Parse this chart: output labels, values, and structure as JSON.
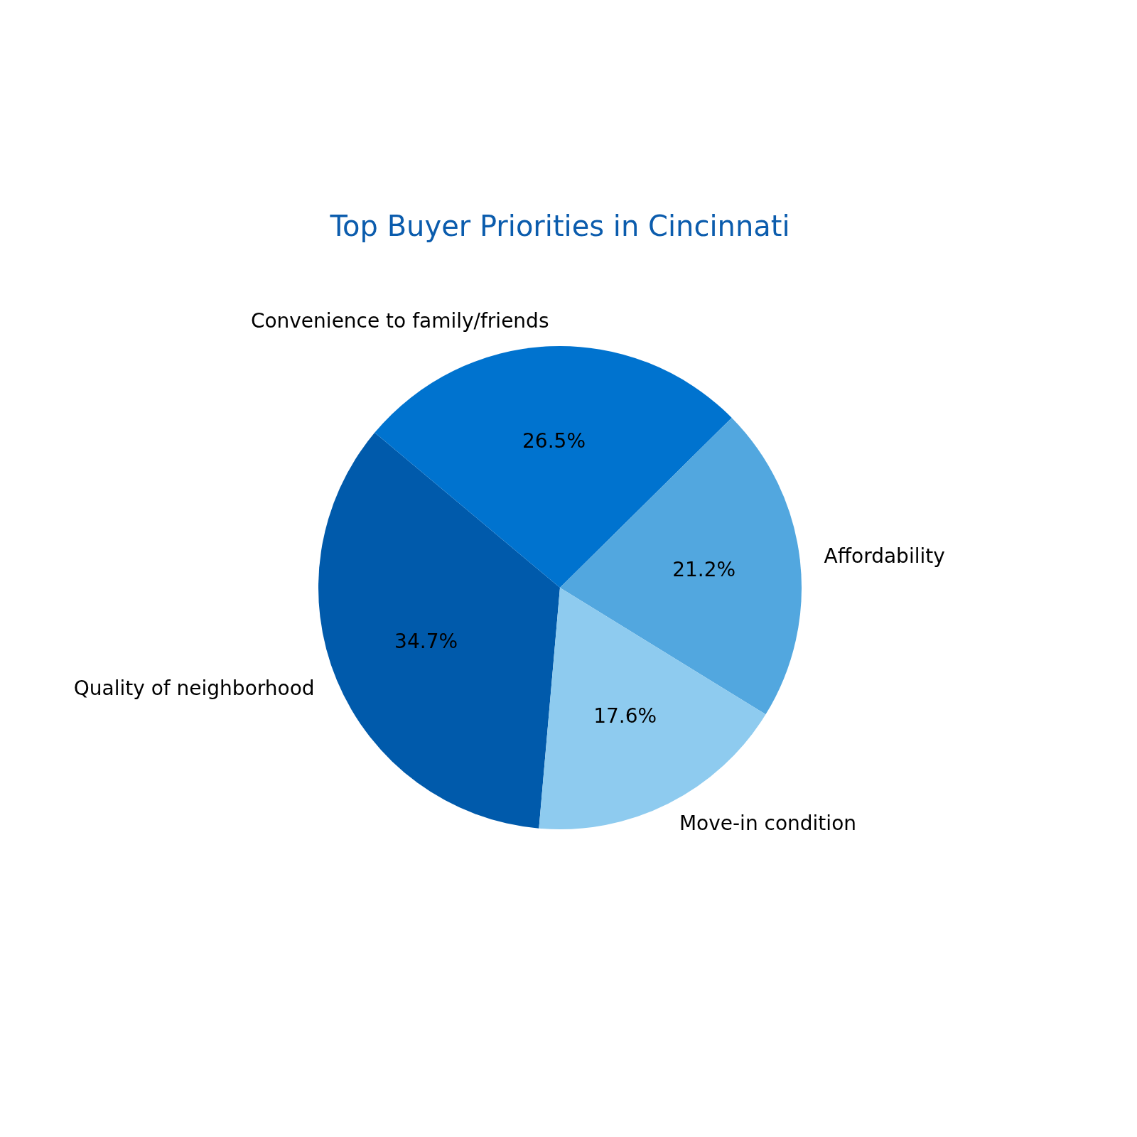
{
  "chart_data": {
    "type": "pie",
    "title": "Top Buyer Priorities in Cincinnati",
    "categories": [
      "Quality of neighborhood",
      "Convenience to family/friends",
      "Affordability",
      "Move-in condition"
    ],
    "values": [
      34.7,
      26.5,
      21.2,
      17.6
    ],
    "colors": [
      "#005aab",
      "#0073cf",
      "#52a7df",
      "#8ecbef"
    ],
    "value_labels": [
      "34.7%",
      "26.5%",
      "21.2%",
      "17.6%"
    ],
    "legend": false
  }
}
